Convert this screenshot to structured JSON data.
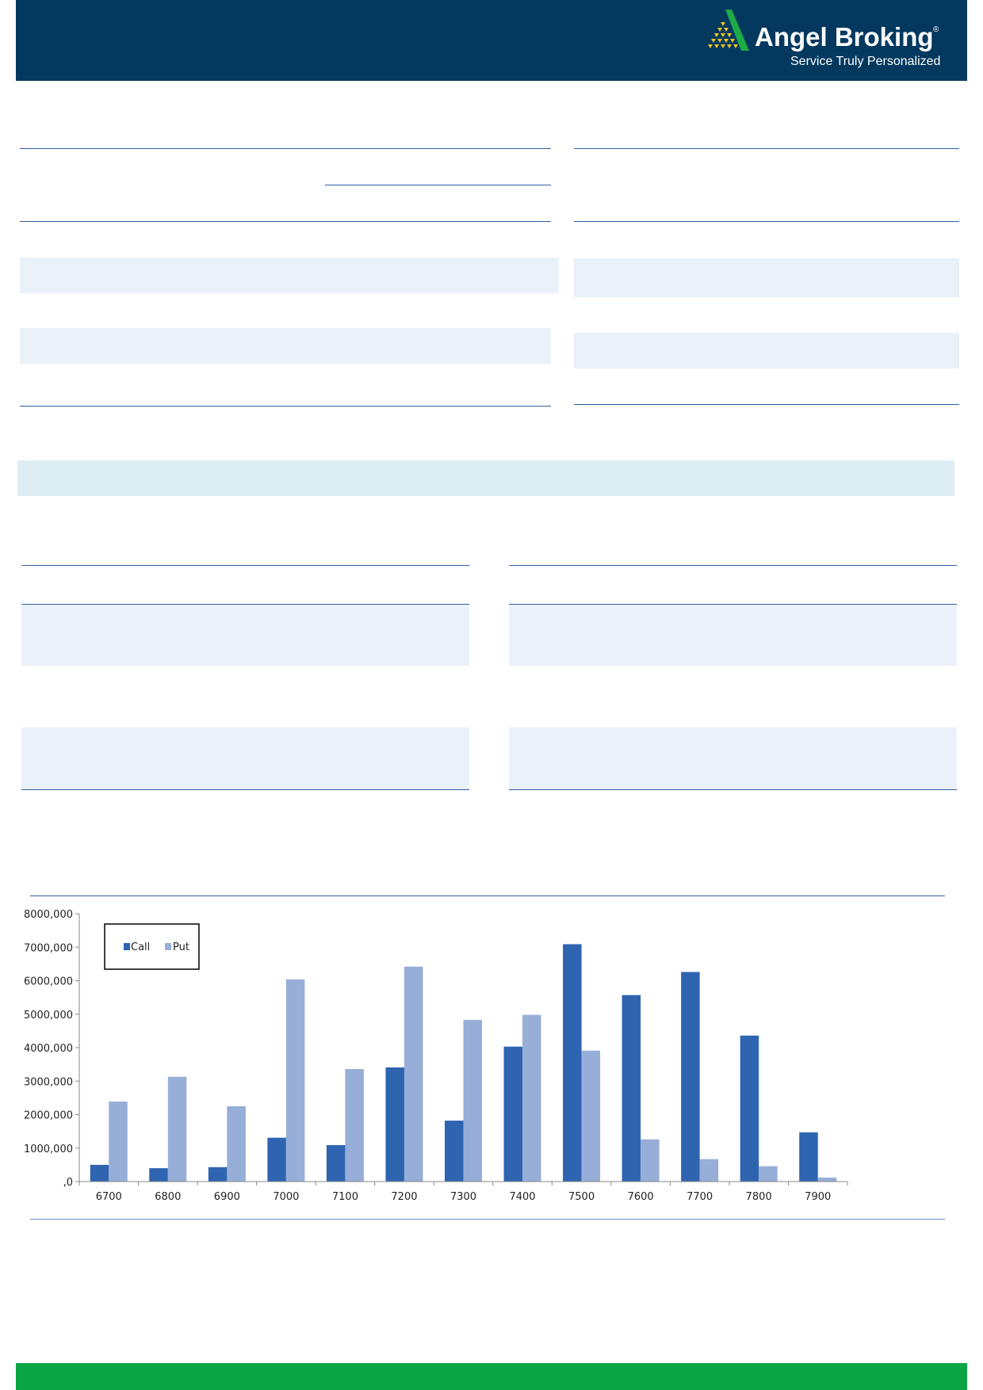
{
  "header": {
    "brand": "Angel Broking",
    "registered_mark": "®",
    "tagline": "Service Truly Personalized",
    "colors": {
      "bar": "#03395f",
      "logo_green": "#1faa48",
      "logo_yellow": "#f2c31a"
    }
  },
  "footer": {
    "color": "#0aa645"
  },
  "chart_data": {
    "type": "bar",
    "categories": [
      "6700",
      "6800",
      "6900",
      "7000",
      "7100",
      "7200",
      "7300",
      "7400",
      "7500",
      "7600",
      "7700",
      "7800",
      "7900"
    ],
    "series": [
      {
        "name": "Call",
        "color": "#2e64b0",
        "values": [
          500000,
          400000,
          430000,
          1310000,
          1090000,
          3410000,
          1820000,
          4030000,
          7090000,
          5570000,
          6260000,
          4360000,
          1470000
        ]
      },
      {
        "name": "Put",
        "color": "#97aed8",
        "values": [
          2390000,
          3130000,
          2250000,
          6040000,
          3360000,
          6420000,
          4830000,
          4980000,
          3910000,
          1260000,
          670000,
          460000,
          120000
        ]
      }
    ],
    "ylim": [
      0,
      8000000
    ],
    "yticks": [
      ",0",
      "1000,000",
      "2000,000",
      "3000,000",
      "4000,000",
      "5000,000",
      "6000,000",
      "7000,000",
      "8000,000"
    ],
    "legend": "top-left",
    "grid": false
  }
}
